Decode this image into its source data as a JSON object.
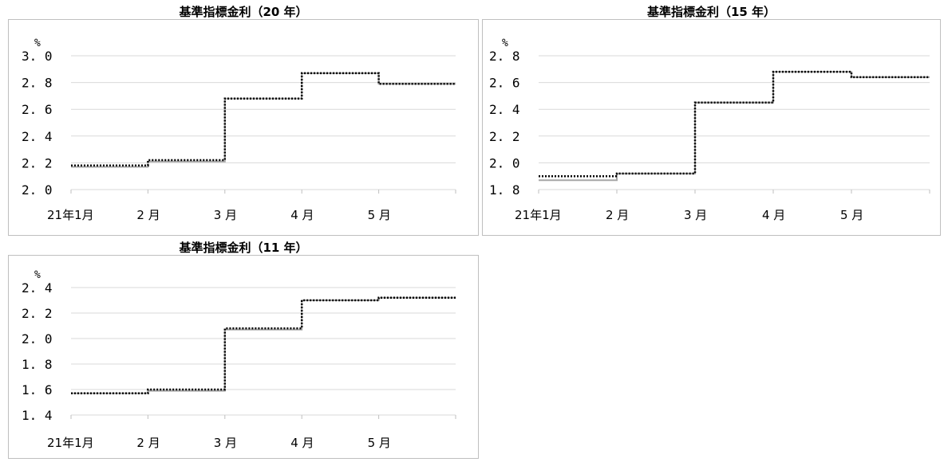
{
  "chart_data": [
    {
      "type": "line",
      "title": "基準指標金利（20 年）",
      "ylabel": "%",
      "ylim": [
        2.0,
        3.0
      ],
      "yticks": [
        "2.0",
        "2.2",
        "2.4",
        "2.6",
        "2.8",
        "3.0"
      ],
      "categories": [
        "21年1月",
        "2 月",
        "3 月",
        "4 月",
        "5 月"
      ],
      "grid": true,
      "series": [
        {
          "style": "solid-gray",
          "color": "#a6a6a6",
          "values": [
            2.17,
            2.21,
            2.68,
            2.87,
            2.79
          ]
        },
        {
          "style": "dotted-black",
          "color": "#000000",
          "values": [
            2.18,
            2.22,
            2.68,
            2.87,
            2.79
          ]
        }
      ]
    },
    {
      "type": "line",
      "title": "基準指標金利（15 年）",
      "ylabel": "%",
      "ylim": [
        1.8,
        2.8
      ],
      "yticks": [
        "1.8",
        "2.0",
        "2.2",
        "2.4",
        "2.6",
        "2.8"
      ],
      "categories": [
        "21年1月",
        "2 月",
        "3 月",
        "4 月",
        "5 月"
      ],
      "grid": true,
      "series": [
        {
          "style": "solid-gray",
          "color": "#a6a6a6",
          "values": [
            1.87,
            1.92,
            2.45,
            2.68,
            2.64
          ]
        },
        {
          "style": "dotted-black",
          "color": "#000000",
          "values": [
            1.9,
            1.92,
            2.45,
            2.68,
            2.64
          ]
        }
      ]
    },
    {
      "type": "line",
      "title": "基準指標金利（11 年）",
      "ylabel": "%",
      "ylim": [
        1.4,
        2.4
      ],
      "yticks": [
        "1.4",
        "1.6",
        "1.8",
        "2.0",
        "2.2",
        "2.4"
      ],
      "categories": [
        "21年1月",
        "2 月",
        "3 月",
        "4 月",
        "5 月"
      ],
      "grid": true,
      "series": [
        {
          "style": "solid-gray",
          "color": "#a6a6a6",
          "values": [
            1.57,
            1.59,
            2.07,
            2.3,
            2.32
          ]
        },
        {
          "style": "dotted-black",
          "color": "#000000",
          "values": [
            1.57,
            1.6,
            2.08,
            2.3,
            2.32
          ]
        }
      ]
    }
  ]
}
